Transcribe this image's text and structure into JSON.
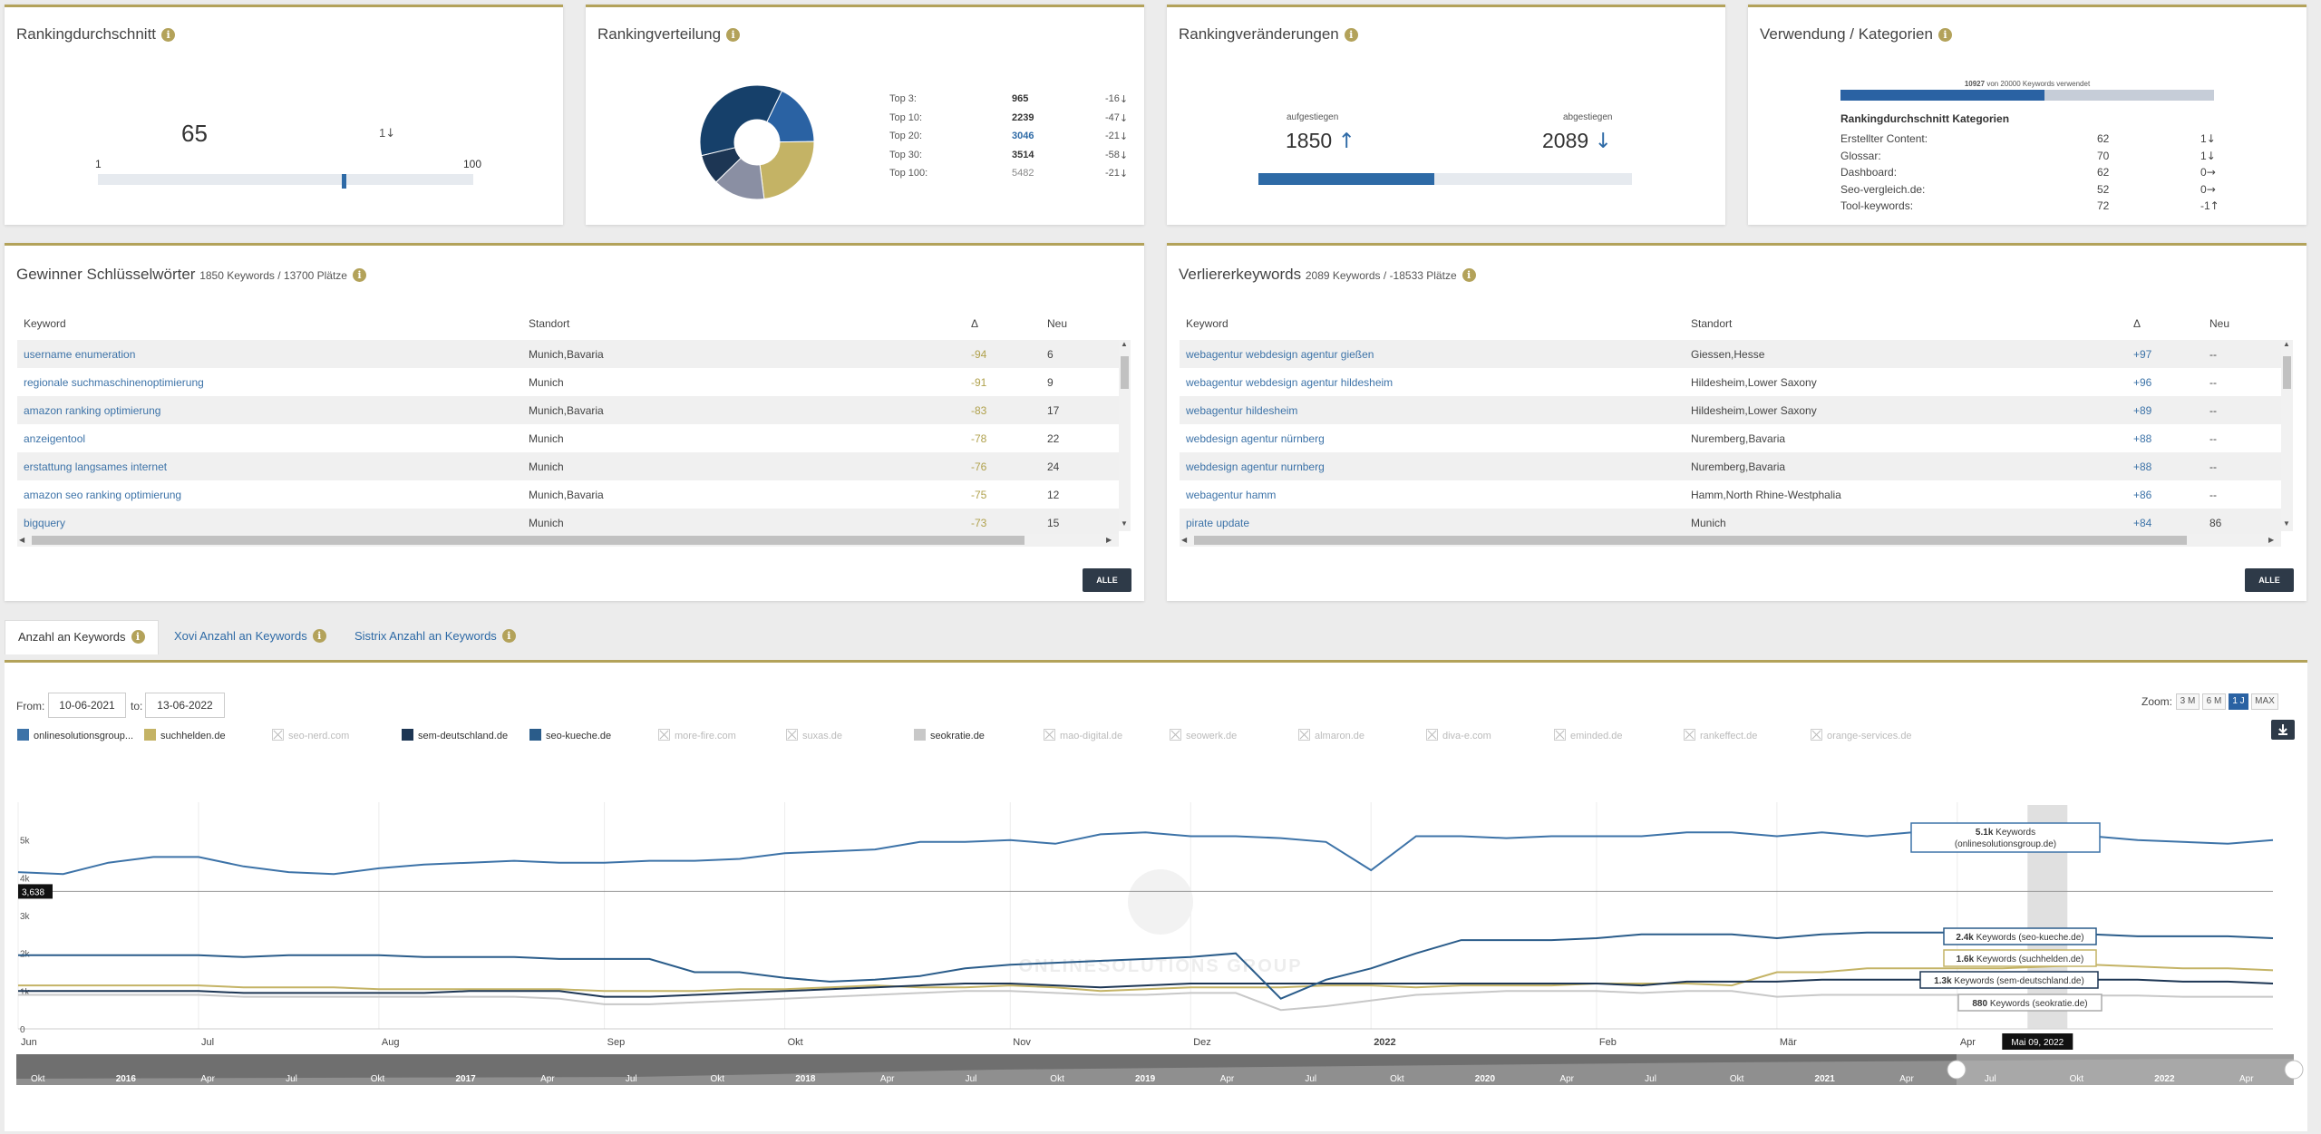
{
  "avg_card": {
    "title": "Rankingdurchschnitt",
    "value": "65",
    "delta": "1",
    "min": "1",
    "max": "100",
    "position": 0.65
  },
  "dist_card": {
    "title": "Rankingverteilung",
    "rows": [
      {
        "label": "Top 3:",
        "value": "965",
        "delta": "-16"
      },
      {
        "label": "Top 10:",
        "value": "2239",
        "delta": "-47"
      },
      {
        "label": "Top 20:",
        "value": "3046",
        "delta": "-21"
      },
      {
        "label": "Top 30:",
        "value": "3514",
        "delta": "-58"
      },
      {
        "label": "Top 100:",
        "value": "5482",
        "delta": "-21"
      }
    ],
    "slice_colors": [
      "#2a62a3",
      "#c4b365",
      "#8a8fa3",
      "#1d3654",
      "#16406a"
    ],
    "slice_values": [
      965,
      1274,
      807,
      468,
      1968
    ]
  },
  "change_card": {
    "title": "Rankingveränderungen",
    "up_label": "aufgestiegen",
    "down_label": "abgestiegen",
    "up_value": "1850",
    "down_value": "2089",
    "up_fraction": 0.47
  },
  "usage_card": {
    "title": "Verwendung / Kategorien",
    "used": "10927",
    "used_text": "von 20000 Keywords verwendet",
    "used_fraction": 0.546,
    "heading": "Rankingdurchschnitt Kategorien",
    "rows": [
      {
        "label": "Erstellter Content:",
        "value": "62",
        "delta": "1",
        "dir": "down"
      },
      {
        "label": "Glossar:",
        "value": "70",
        "delta": "1",
        "dir": "down"
      },
      {
        "label": "Dashboard:",
        "value": "62",
        "delta": "0",
        "dir": "right"
      },
      {
        "label": "Seo-vergleich.de:",
        "value": "52",
        "delta": "0",
        "dir": "right"
      },
      {
        "label": "Tool-keywords:",
        "value": "72",
        "delta": "-1",
        "dir": "up"
      }
    ]
  },
  "winners": {
    "title": "Gewinner Schlüsselwörter",
    "subtitle": "1850 Keywords / 13700 Plätze",
    "col_keyword": "Keyword",
    "col_location": "Standort",
    "col_delta": "Δ",
    "col_new": "Neu",
    "button": "ALLE",
    "rows": [
      {
        "keyword": "username enumeration",
        "location": "Munich,Bavaria",
        "delta": "-94",
        "new": "6"
      },
      {
        "keyword": "regionale suchmaschinenoptimierung",
        "location": "Munich",
        "delta": "-91",
        "new": "9"
      },
      {
        "keyword": "amazon ranking optimierung",
        "location": "Munich,Bavaria",
        "delta": "-83",
        "new": "17"
      },
      {
        "keyword": "anzeigentool",
        "location": "Munich",
        "delta": "-78",
        "new": "22"
      },
      {
        "keyword": "erstattung langsames internet",
        "location": "Munich",
        "delta": "-76",
        "new": "24"
      },
      {
        "keyword": "amazon seo ranking optimierung",
        "location": "Munich,Bavaria",
        "delta": "-75",
        "new": "12"
      },
      {
        "keyword": "bigquery",
        "location": "Munich",
        "delta": "-73",
        "new": "15"
      }
    ]
  },
  "losers": {
    "title": "Verliererkeywords",
    "subtitle": "2089 Keywords / -18533 Plätze",
    "col_keyword": "Keyword",
    "col_location": "Standort",
    "col_delta": "Δ",
    "col_new": "Neu",
    "button": "ALLE",
    "rows": [
      {
        "keyword": "webagentur webdesign agentur gießen",
        "location": "Giessen,Hesse",
        "delta": "+97",
        "new": "--"
      },
      {
        "keyword": "webagentur webdesign agentur hildesheim",
        "location": "Hildesheim,Lower Saxony",
        "delta": "+96",
        "new": "--"
      },
      {
        "keyword": "webagentur hildesheim",
        "location": "Hildesheim,Lower Saxony",
        "delta": "+89",
        "new": "--"
      },
      {
        "keyword": "webdesign agentur nürnberg",
        "location": "Nuremberg,Bavaria",
        "delta": "+88",
        "new": "--"
      },
      {
        "keyword": "webdesign agentur nurnberg",
        "location": "Nuremberg,Bavaria",
        "delta": "+88",
        "new": "--"
      },
      {
        "keyword": "webagentur hamm",
        "location": "Hamm,North Rhine-Westphalia",
        "delta": "+86",
        "new": "--"
      },
      {
        "keyword": "pirate update",
        "location": "Munich",
        "delta": "+84",
        "new": "86"
      }
    ]
  },
  "tabs": [
    {
      "label": "Anzahl an Keywords",
      "active": true
    },
    {
      "label": "Xovi Anzahl an Keywords",
      "active": false
    },
    {
      "label": "Sistrix Anzahl an Keywords",
      "active": false
    }
  ],
  "filters": {
    "from_label": "From:",
    "from_value": "10-06-2021",
    "to_label": "to:",
    "to_value": "13-06-2022",
    "zoom_label": "Zoom:",
    "zoom_options": [
      "3 M",
      "6 M",
      "1 J",
      "MAX"
    ],
    "zoom_active": "1 J"
  },
  "legend": [
    {
      "name": "onlinesolutionsgroup...",
      "color": "#3d73a8",
      "on": true
    },
    {
      "name": "suchhelden.de",
      "color": "#c4b365",
      "on": true
    },
    {
      "name": "seo-nerd.com",
      "color": "",
      "on": false
    },
    {
      "name": "sem-deutschland.de",
      "color": "#1d3654",
      "on": true
    },
    {
      "name": "seo-kueche.de",
      "color": "#2a5c8a",
      "on": true
    },
    {
      "name": "more-fire.com",
      "color": "",
      "on": false
    },
    {
      "name": "suxas.de",
      "color": "",
      "on": false
    },
    {
      "name": "seokratie.de",
      "color": "#c8c8c8",
      "on": true
    },
    {
      "name": "mao-digital.de",
      "color": "",
      "on": false
    },
    {
      "name": "seowerk.de",
      "color": "",
      "on": false
    },
    {
      "name": "almaron.de",
      "color": "",
      "on": false
    },
    {
      "name": "diva-e.com",
      "color": "",
      "on": false
    },
    {
      "name": "eminded.de",
      "color": "",
      "on": false
    },
    {
      "name": "rankeffect.de",
      "color": "",
      "on": false
    },
    {
      "name": "orange-services.de",
      "color": "",
      "on": false
    }
  ],
  "chart_data": {
    "type": "line",
    "y_ticks": [
      "0",
      "1k",
      "2k",
      "3k",
      "4k",
      "5k"
    ],
    "ylim": [
      0,
      6000
    ],
    "x_labels": [
      {
        "label": "Jun",
        "i": 0
      },
      {
        "label": "Jul",
        "i": 4
      },
      {
        "label": "Aug",
        "i": 8
      },
      {
        "label": "Sep",
        "i": 13
      },
      {
        "label": "Okt",
        "i": 17
      },
      {
        "label": "Nov",
        "i": 22
      },
      {
        "label": "Dez",
        "i": 26
      },
      {
        "label": "2022",
        "i": 30
      },
      {
        "label": "Feb",
        "i": 35
      },
      {
        "label": "Mär",
        "i": 39
      },
      {
        "label": "Apr",
        "i": 43
      }
    ],
    "crosshair_value": "3,638",
    "crosshair_y": 3638,
    "hover_date": "Mai 09, 2022",
    "hover_index": 45,
    "series": [
      {
        "name": "onlinesolutionsgroup.de",
        "color": "#3d73a8",
        "values": [
          4150,
          4100,
          4400,
          4550,
          4550,
          4300,
          4150,
          4100,
          4250,
          4350,
          4400,
          4450,
          4400,
          4400,
          4450,
          4450,
          4500,
          4650,
          4700,
          4750,
          4950,
          4950,
          5000,
          4900,
          5150,
          5200,
          5100,
          5100,
          5050,
          4950,
          4200,
          5100,
          5100,
          5050,
          5100,
          5100,
          5100,
          5200,
          5200,
          5100,
          5200,
          5100,
          5200,
          5200,
          5150,
          5100,
          5100,
          5000,
          4950,
          4900,
          5000
        ]
      },
      {
        "name": "seo-kueche.de",
        "color": "#2a5c8a",
        "values": [
          1950,
          1950,
          1950,
          1950,
          1950,
          1900,
          1950,
          1950,
          1950,
          1900,
          1900,
          1900,
          1850,
          1850,
          1850,
          1500,
          1500,
          1350,
          1250,
          1300,
          1400,
          1600,
          1700,
          1750,
          1800,
          1850,
          1900,
          2000,
          800,
          1300,
          1600,
          2000,
          2350,
          2350,
          2350,
          2400,
          2500,
          2500,
          2500,
          2400,
          2500,
          2550,
          2550,
          2550,
          2400,
          2400,
          2500,
          2450,
          2450,
          2450,
          2400
        ]
      },
      {
        "name": "suchhelden.de",
        "color": "#c4b365",
        "values": [
          1150,
          1150,
          1150,
          1150,
          1150,
          1100,
          1100,
          1100,
          1050,
          1050,
          1050,
          1050,
          1050,
          1000,
          1000,
          1000,
          1050,
          1050,
          1100,
          1150,
          1100,
          1100,
          1150,
          1100,
          1000,
          1050,
          1100,
          1100,
          1100,
          1150,
          1150,
          1100,
          1150,
          1150,
          1150,
          1200,
          1200,
          1200,
          1150,
          1500,
          1500,
          1600,
          1600,
          1600,
          1600,
          1650,
          1700,
          1650,
          1600,
          1600,
          1550
        ]
      },
      {
        "name": "sem-deutschland.de",
        "color": "#1d3654",
        "values": [
          1000,
          1000,
          1000,
          1000,
          1000,
          950,
          950,
          950,
          950,
          950,
          1000,
          1000,
          1000,
          850,
          850,
          900,
          950,
          1000,
          1050,
          1100,
          1150,
          1200,
          1200,
          1150,
          1100,
          1150,
          1200,
          1200,
          1200,
          1200,
          1200,
          1200,
          1200,
          1200,
          1200,
          1200,
          1150,
          1250,
          1250,
          1250,
          1300,
          1300,
          1300,
          1300,
          1300,
          1300,
          1300,
          1300,
          1250,
          1250,
          1200
        ]
      },
      {
        "name": "seokratie.de",
        "color": "#c8c8c8",
        "values": [
          900,
          900,
          900,
          900,
          900,
          850,
          850,
          850,
          850,
          850,
          850,
          850,
          800,
          650,
          650,
          700,
          750,
          800,
          850,
          900,
          950,
          1000,
          1000,
          950,
          900,
          900,
          950,
          950,
          500,
          600,
          750,
          900,
          950,
          1000,
          1000,
          1000,
          950,
          1000,
          1000,
          850,
          900,
          900,
          900,
          900,
          900,
          880,
          880,
          880,
          850,
          850,
          850
        ]
      }
    ],
    "tooltips": [
      {
        "value": "5.1k",
        "text": "Keywords (onlinesolutionsgroup.de)"
      },
      {
        "value": "2.4k",
        "text": "Keywords (seo-kueche.de)"
      },
      {
        "value": "1.6k",
        "text": "Keywords (suchhelden.de)"
      },
      {
        "value": "1.3k",
        "text": "Keywords (sem-deutschland.de)"
      },
      {
        "value": "880",
        "text": "Keywords (seokratie.de)"
      }
    ],
    "navigator_labels": [
      "Okt",
      "2016",
      "Apr",
      "Jul",
      "Okt",
      "2017",
      "Apr",
      "Jul",
      "Okt",
      "2018",
      "Apr",
      "Jul",
      "Okt",
      "2019",
      "Apr",
      "Jul",
      "Okt",
      "2020",
      "Apr",
      "Jul",
      "Okt",
      "2021",
      "Apr",
      "Jul",
      "Okt",
      "2022",
      "Apr"
    ],
    "watermark": "ONLINESOLUTIONS GROUP"
  }
}
